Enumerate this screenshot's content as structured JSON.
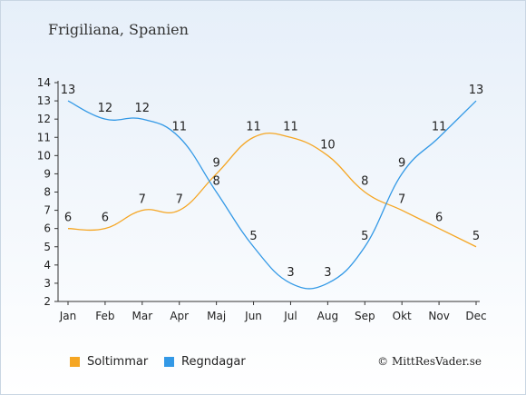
{
  "title": "Frigiliana, Spanien",
  "copyright": "© MittResVader.se",
  "chart_data": {
    "type": "line",
    "categories": [
      "Jan",
      "Feb",
      "Mar",
      "Apr",
      "Maj",
      "Jun",
      "Jul",
      "Aug",
      "Sep",
      "Okt",
      "Nov",
      "Dec"
    ],
    "ylim": [
      2,
      14
    ],
    "yticks": [
      2,
      3,
      4,
      5,
      6,
      7,
      8,
      9,
      10,
      11,
      12,
      13,
      14
    ],
    "grid": false,
    "legend_position": "bottom-left",
    "series": [
      {
        "name": "Soltimmar",
        "color": "#f5a623",
        "values": [
          6,
          6,
          7,
          7,
          9,
          11,
          11,
          10,
          8,
          7,
          6,
          5
        ]
      },
      {
        "name": "Regndagar",
        "color": "#3399e6",
        "values": [
          13,
          12,
          12,
          11,
          8,
          5,
          3,
          3,
          5,
          9,
          11,
          13
        ]
      }
    ]
  }
}
